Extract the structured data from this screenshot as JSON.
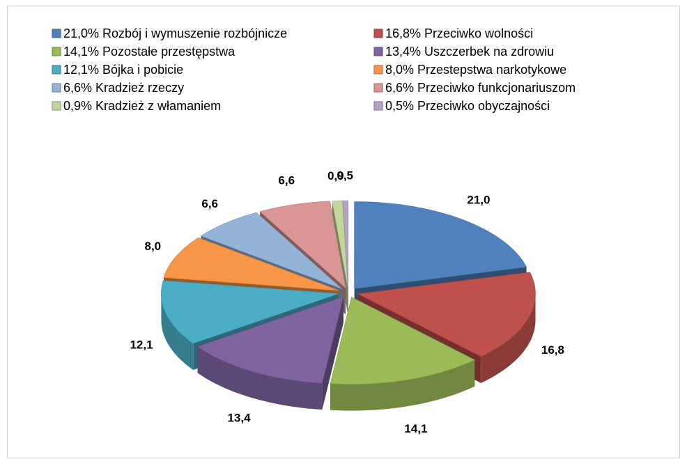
{
  "chart_data": {
    "type": "pie3d",
    "categories": [
      "21,0% Rozbój i wymuszenie rozbójnicze",
      "16,8% Przeciwko wolności",
      "14,1% Pozostałe przestępstwa",
      "13,4% Uszczerbek na zdrowiu",
      "12,1% Bójka i pobicie",
      "8,0% Przestepstwa narkotykowe",
      "6,6% Kradzież rzeczy",
      "6,6% Przeciwko funkcjonariuszom",
      "0,9% Kradzież z włamaniem",
      "0,5% Przeciwko obyczajności"
    ],
    "values": [
      21.0,
      16.8,
      14.1,
      13.4,
      12.1,
      8.0,
      6.6,
      6.6,
      0.9,
      0.5
    ],
    "value_labels": [
      "21,0",
      "16,8",
      "14,1",
      "13,4",
      "12,1",
      "8,0",
      "6,6",
      "6,6",
      "0,9",
      "0,5"
    ],
    "colors": [
      "#4f81bd",
      "#c0504d",
      "#9bbb59",
      "#8064a2",
      "#4bacc6",
      "#f79646",
      "#95b3d7",
      "#d99694",
      "#c3d69b",
      "#b3a2c7"
    ],
    "legend": "top"
  }
}
